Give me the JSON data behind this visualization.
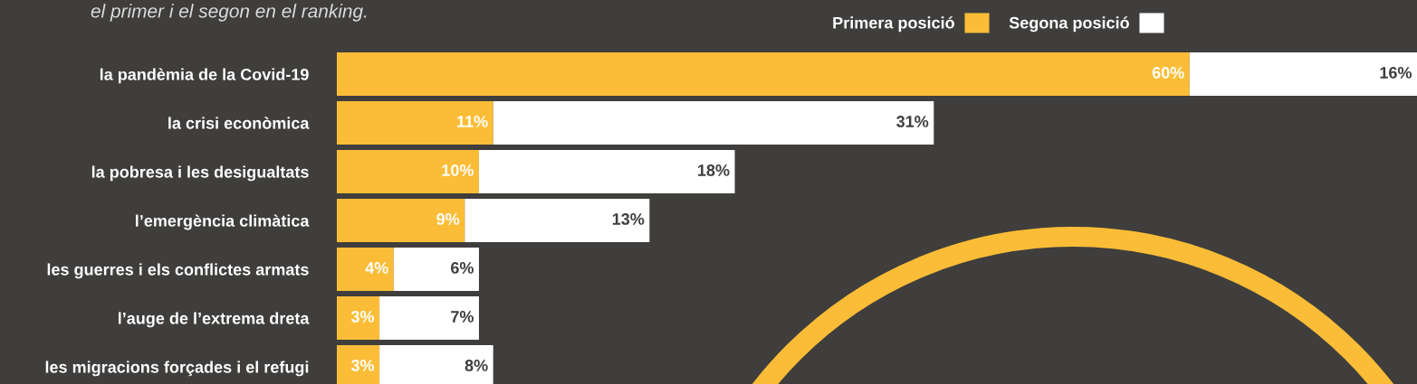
{
  "chart_data": {
    "type": "bar",
    "orientation": "horizontal",
    "stacked": true,
    "subtitle": "el primer i el segon en el ranking.",
    "categories": [
      "la pandèmia de la Covid-19",
      "la crisi econòmica",
      "la pobresa i les desigualtats",
      "l’emergència climàtica",
      "les guerres i els conflictes armats",
      "l’auge de l’extrema dreta",
      "les migracions forçades i el refugi"
    ],
    "series": [
      {
        "name": "Primera posició",
        "color": "#fbbd37",
        "values": [
          60,
          11,
          10,
          9,
          4,
          3,
          3
        ],
        "value_labels": [
          "60%",
          "11%",
          "10%",
          "9%",
          "4%",
          "3%",
          "3%"
        ]
      },
      {
        "name": "Segona posició",
        "color": "#ffffff",
        "values": [
          16,
          31,
          18,
          13,
          6,
          7,
          8
        ],
        "value_labels": [
          "16%",
          "31%",
          "18%",
          "13%",
          "6%",
          "7%",
          "8%"
        ]
      }
    ],
    "legend": "top right",
    "grid": false
  }
}
